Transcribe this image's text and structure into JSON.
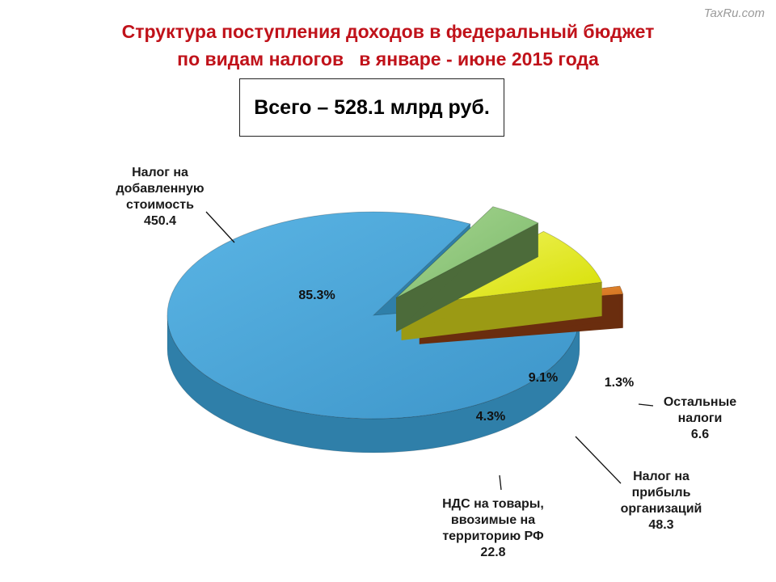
{
  "watermark": "TaxRu.com",
  "title_line1": "Структура поступления доходов в федеральный бюджет",
  "title_line2": "по видам налогов   в январе - июне 2015 года",
  "total_label": "Всего – 528.1 млрд руб.",
  "chart_data": {
    "type": "pie",
    "unit": "млрд руб.",
    "total": 528.1,
    "slices": [
      {
        "label_lines": [
          "Налог на",
          "добавленную",
          "стоимость"
        ],
        "value": 450.4,
        "value_text": "450.4",
        "percent": 85.3,
        "percent_text": "85.3%",
        "color": "#4aa3d6",
        "side_color": "#2f7fa9"
      },
      {
        "label_lines": [
          "НДС на товары,",
          "ввозимые на",
          "территорию РФ"
        ],
        "value": 22.8,
        "value_text": "22.8",
        "percent": 4.3,
        "percent_text": "4.3%",
        "color": "#8cc57a",
        "side_color": "#4c6b3a"
      },
      {
        "label_lines": [
          "Налог на",
          "прибыль",
          "организаций"
        ],
        "value": 48.3,
        "value_text": "48.3",
        "percent": 9.1,
        "percent_text": "9.1%",
        "color": "#e5ed12",
        "side_color": "#9b9a14"
      },
      {
        "label_lines": [
          "Остальные",
          "налоги"
        ],
        "value": 6.6,
        "value_text": "6.6",
        "percent": 1.3,
        "percent_text": "1.3%",
        "color": "#dd7a20",
        "side_color": "#6a2d0e"
      }
    ]
  }
}
